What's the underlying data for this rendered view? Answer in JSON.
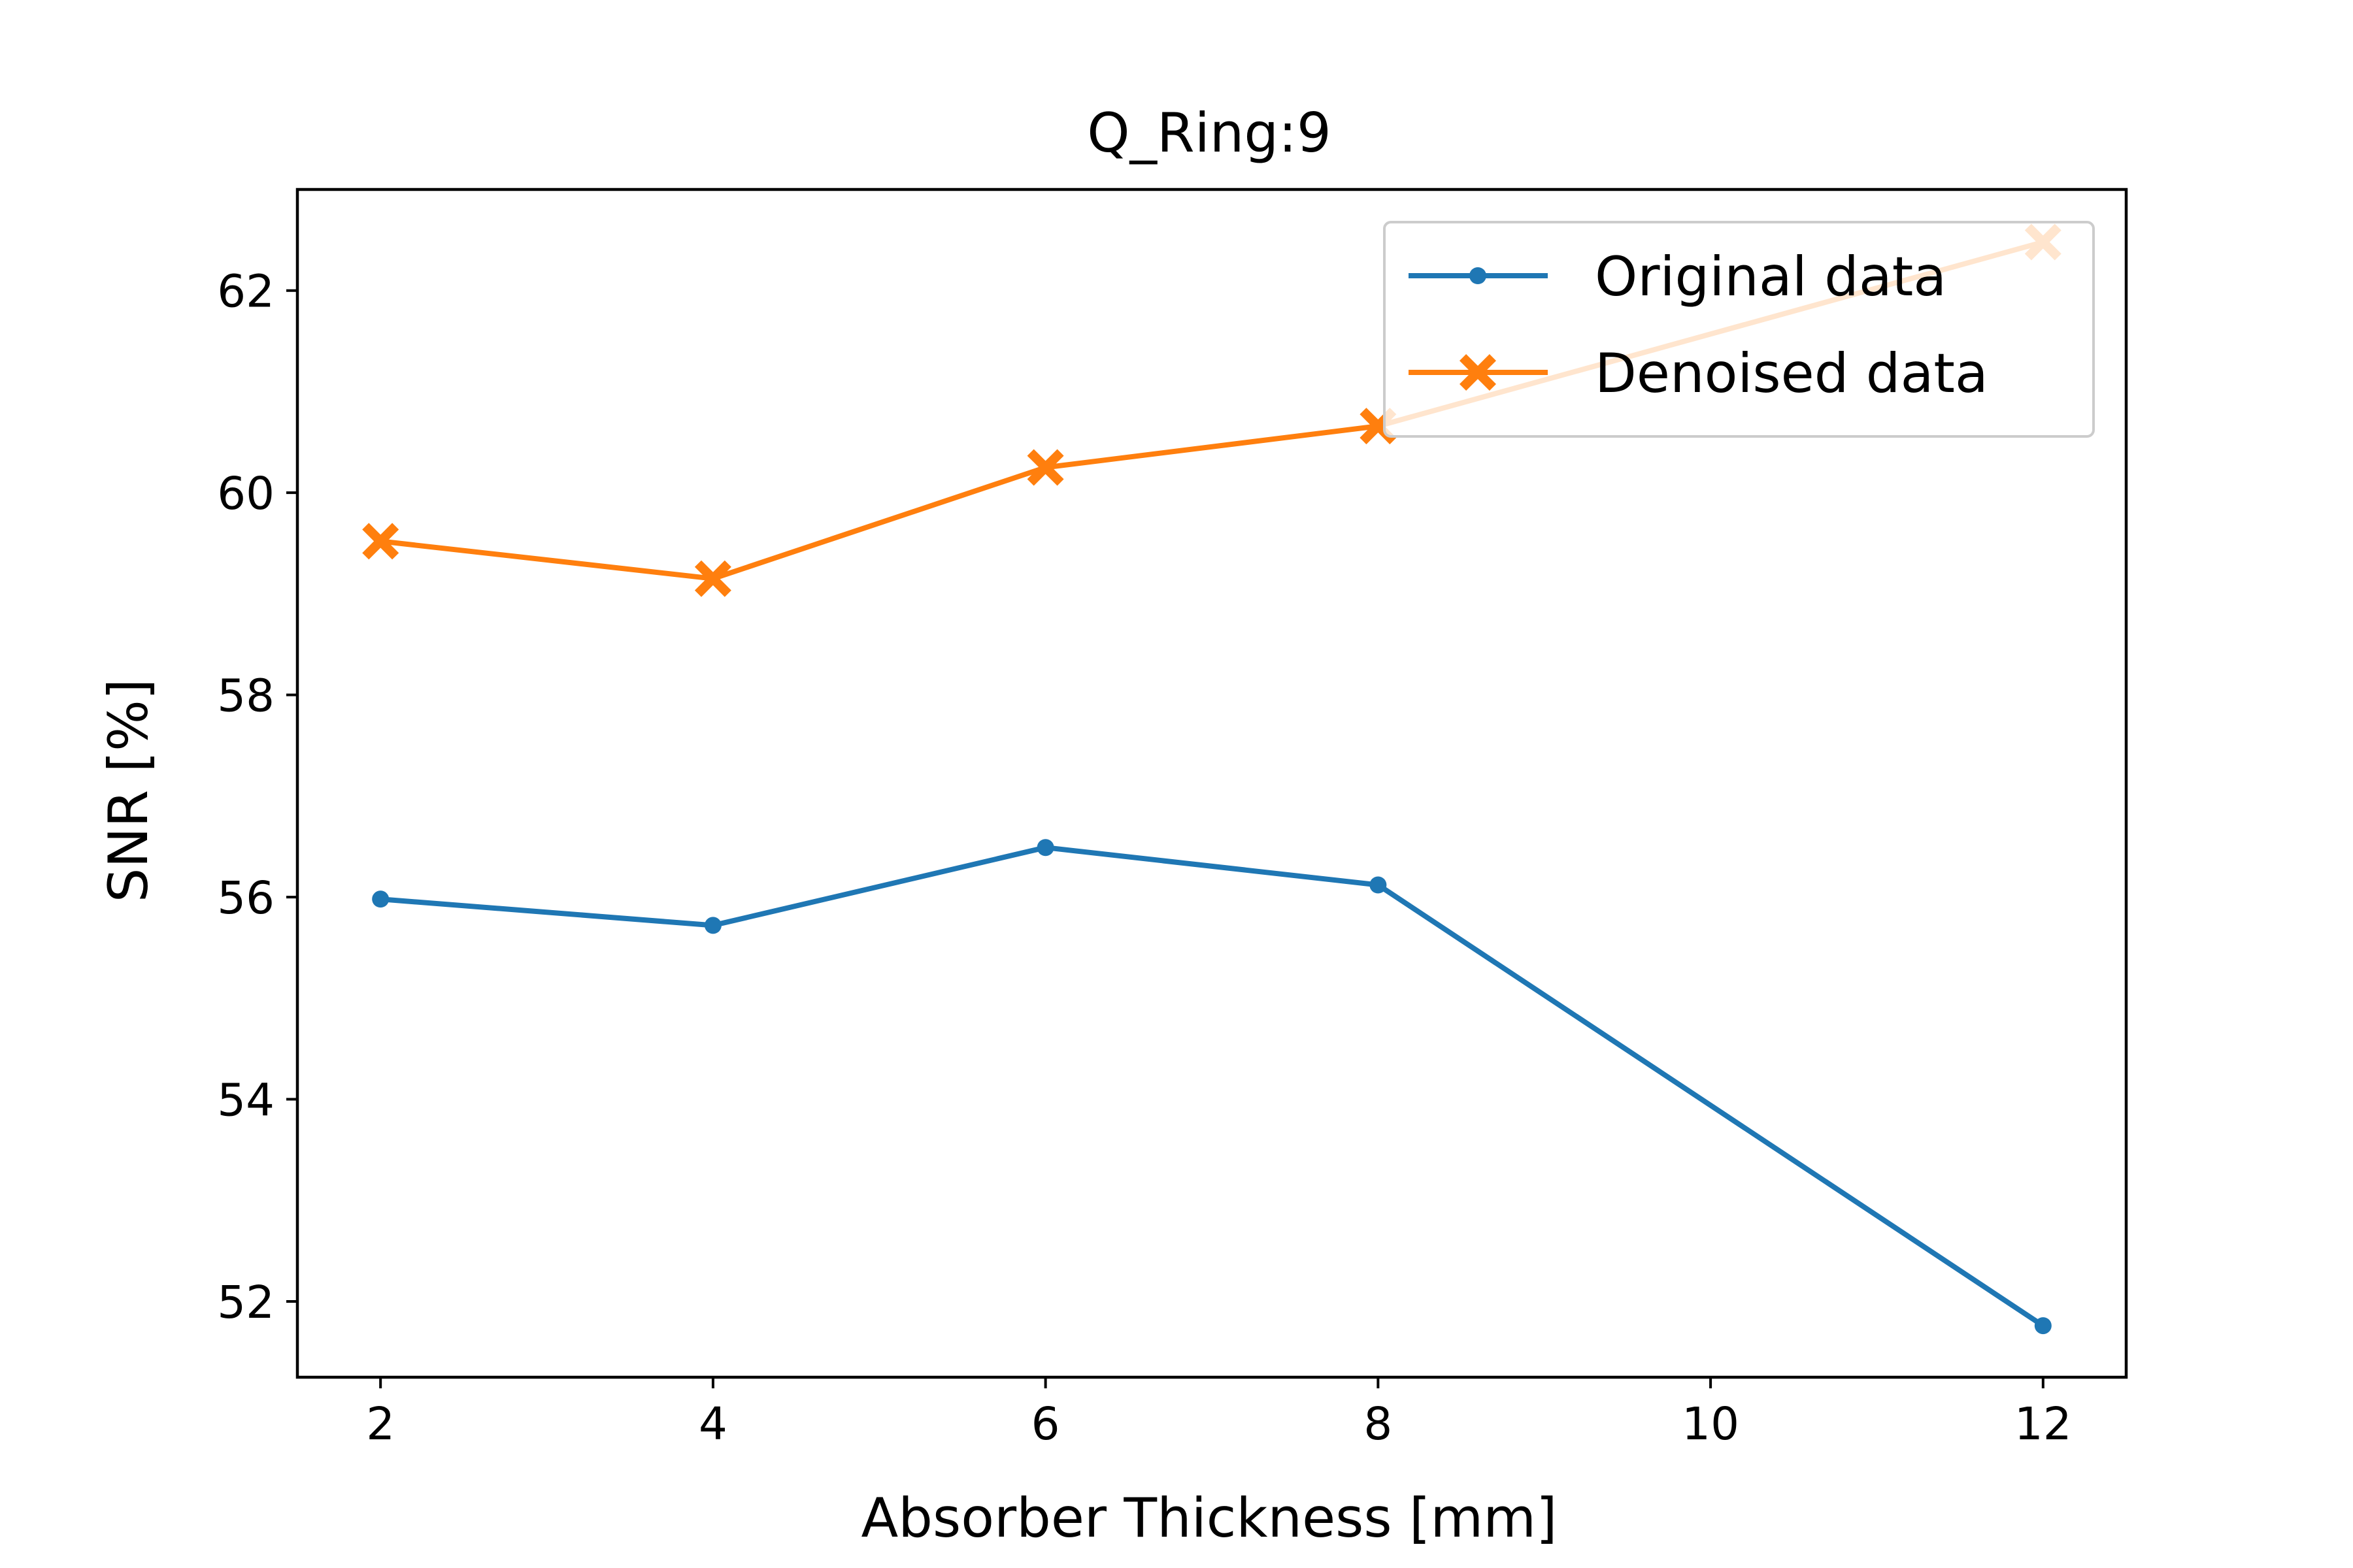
{
  "chart_data": {
    "type": "line",
    "title": "Q_Ring:9",
    "xlabel": "Absorber Thickness [mm]",
    "ylabel": "SNR [%]",
    "xlim": [
      1.5,
      12.5
    ],
    "ylim": [
      51.25,
      63.0
    ],
    "xticks": [
      2,
      4,
      6,
      8,
      10,
      12
    ],
    "yticks": [
      52,
      54,
      56,
      58,
      60,
      62
    ],
    "grid": false,
    "legend_position": "upper right",
    "series": [
      {
        "name": "Original data",
        "color": "#1f77b4",
        "marker": "circle",
        "x": [
          2,
          4,
          6,
          8,
          12
        ],
        "y": [
          55.98,
          55.72,
          56.49,
          56.12,
          51.76
        ]
      },
      {
        "name": "Denoised data",
        "color": "#ff7f0e",
        "marker": "filled-x",
        "x": [
          2,
          4,
          6,
          8,
          12
        ],
        "y": [
          59.52,
          59.15,
          60.25,
          60.66,
          62.48
        ]
      }
    ]
  }
}
